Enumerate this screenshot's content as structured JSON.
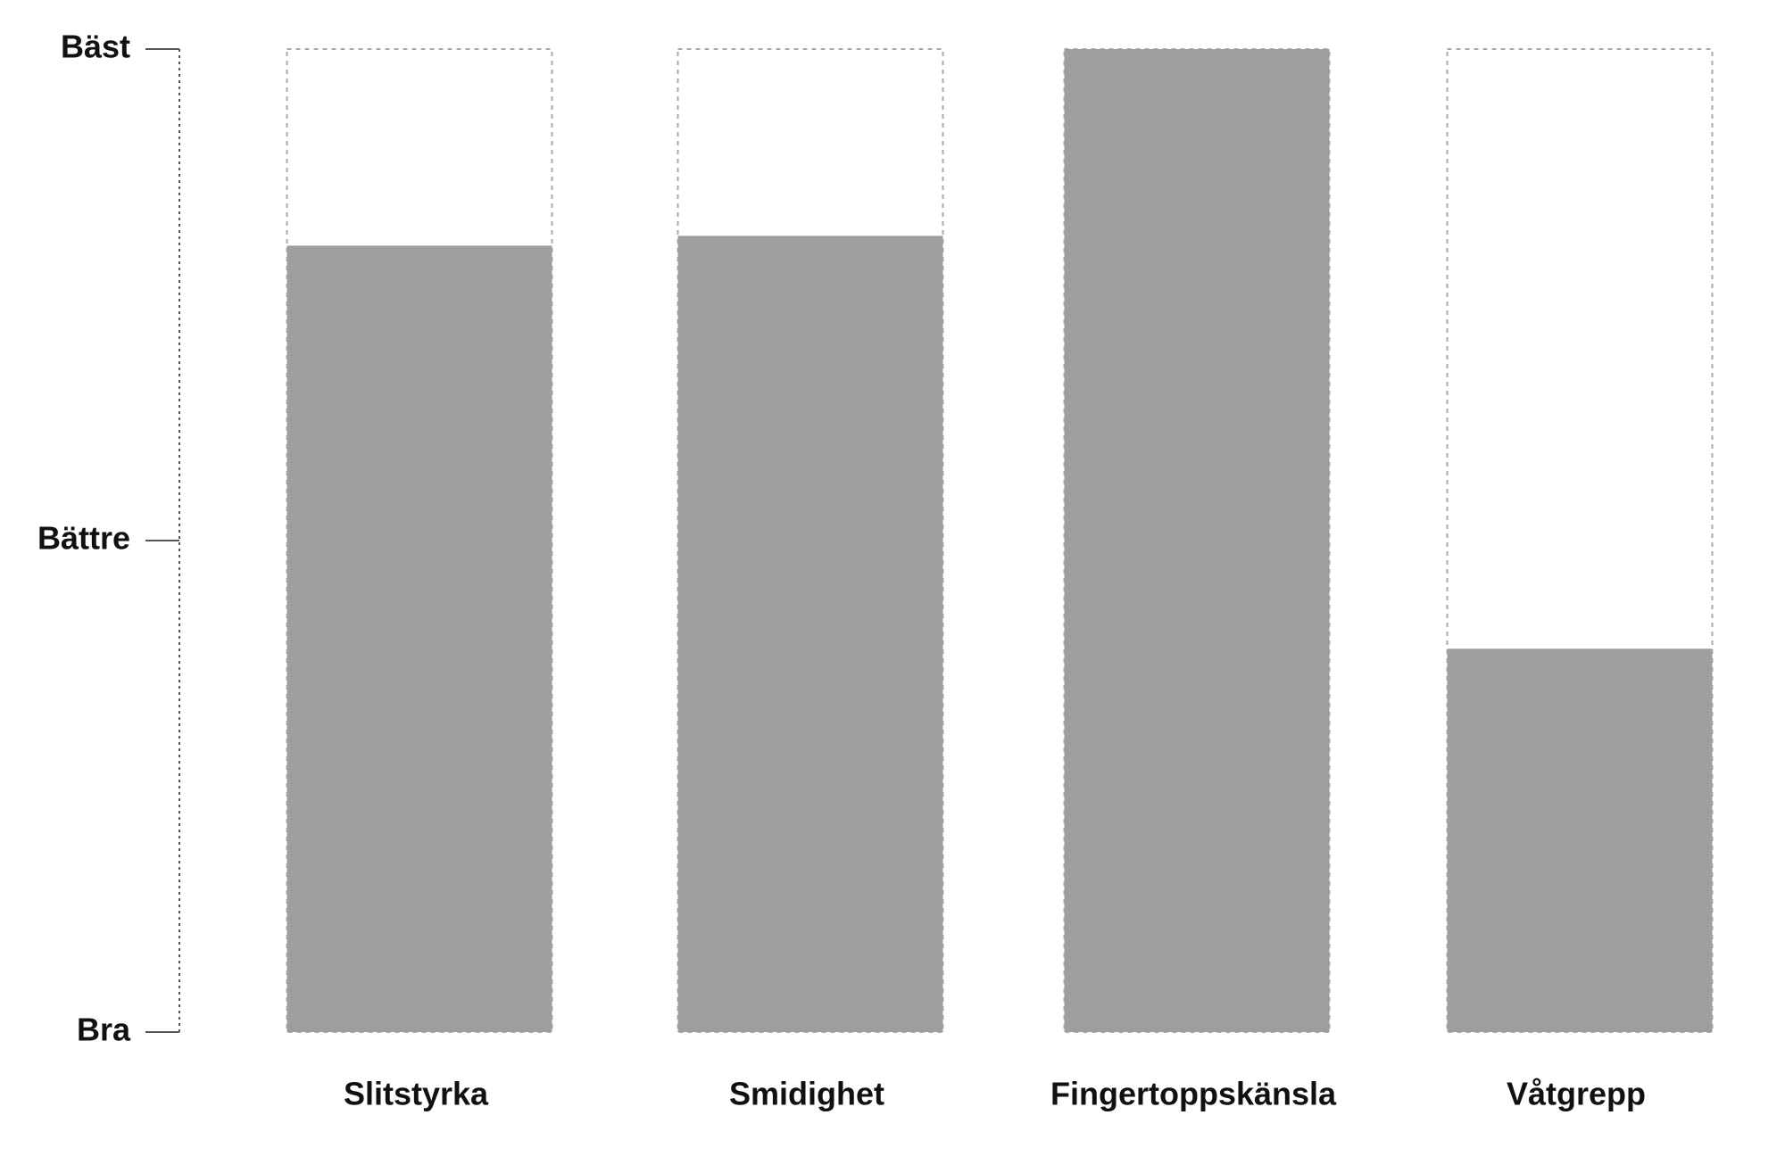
{
  "chart_data": {
    "type": "bar",
    "categories": [
      "Slitstyrka",
      "Smidighet",
      "Fingertoppskänsla",
      "Våtgrepp"
    ],
    "values": [
      80,
      81,
      100,
      39
    ],
    "color": "#9e9e9e",
    "ylim": [
      0,
      100
    ],
    "yticks": [
      {
        "value": 0,
        "label": "Bra"
      },
      {
        "value": 50,
        "label": "Bättre"
      },
      {
        "value": 100,
        "label": "Bäst"
      }
    ]
  }
}
